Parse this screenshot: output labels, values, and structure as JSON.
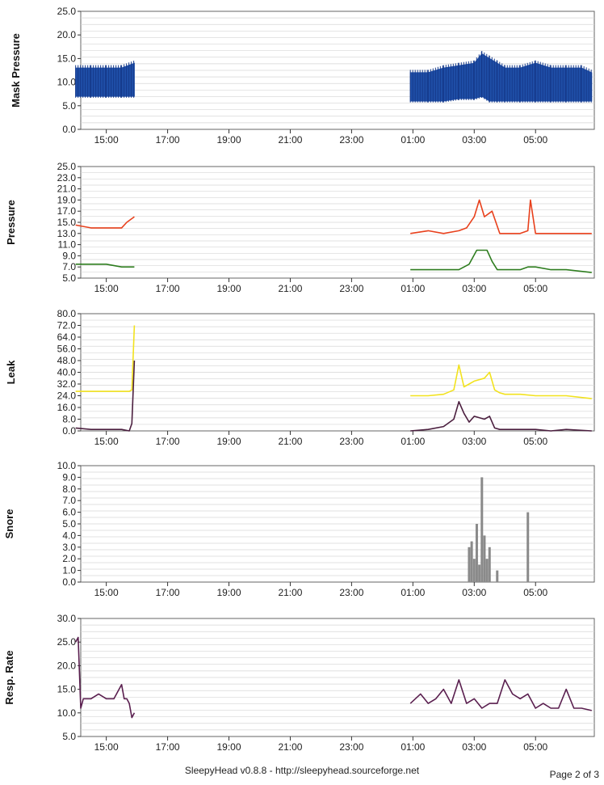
{
  "footer": {
    "text": "SleepyHead v0.8.8 - http://sleepyhead.sourceforge.net",
    "page": "Page 2 of 3"
  },
  "x_ticks": [
    "15:00",
    "17:00",
    "19:00",
    "21:00",
    "23:00",
    "01:00",
    "03:00",
    "05:00"
  ],
  "chart_data": [
    {
      "type": "line",
      "ylabel": "Mask Pressure",
      "ylim": [
        0,
        25
      ],
      "yticks": [
        "0.0",
        "5.0",
        "10.0",
        "15.0",
        "20.0",
        "25.0"
      ],
      "grid": true,
      "series": [
        {
          "color": "#1f4fa8",
          "style": "band",
          "x": [
            "14:00",
            "14:30",
            "15:00",
            "15:30",
            "15:55",
            "00:55",
            "01:30",
            "02:00",
            "02:30",
            "03:00",
            "03:15",
            "03:30",
            "03:45",
            "04:00",
            "04:30",
            "05:00",
            "05:30",
            "06:00",
            "06:30",
            "06:50"
          ],
          "low": [
            7,
            7,
            7,
            7,
            7,
            6,
            6,
            6,
            6.5,
            6.5,
            7,
            6,
            6,
            6,
            6,
            6,
            6,
            6,
            6,
            6
          ],
          "high": [
            13,
            13,
            13,
            13,
            14,
            12,
            12,
            13,
            13.5,
            14,
            16,
            15,
            14,
            13,
            13,
            14,
            13,
            13,
            13,
            12
          ]
        }
      ]
    },
    {
      "type": "line",
      "ylabel": "Pressure",
      "ylim": [
        5,
        25
      ],
      "yticks": [
        "5.0",
        "7.0",
        "9.0",
        "11.0",
        "13.0",
        "15.0",
        "17.0",
        "19.0",
        "21.0",
        "23.0",
        "25.0"
      ],
      "grid": true,
      "series": [
        {
          "color": "#e8401c",
          "x": [
            "14:00",
            "14:30",
            "15:00",
            "15:30",
            "15:40",
            "15:55",
            "00:55",
            "01:30",
            "02:00",
            "02:30",
            "02:45",
            "03:00",
            "03:10",
            "03:20",
            "03:35",
            "03:50",
            "04:00",
            "04:30",
            "04:45",
            "04:50",
            "05:00",
            "05:30",
            "06:00",
            "06:50"
          ],
          "values": [
            14.5,
            14,
            14,
            14,
            15,
            16,
            13,
            13.5,
            13,
            13.5,
            14,
            16,
            19,
            16,
            17,
            13,
            13,
            13,
            13.5,
            19,
            13,
            13,
            13,
            13
          ]
        },
        {
          "color": "#2e7d1f",
          "x": [
            "14:00",
            "14:30",
            "15:00",
            "15:30",
            "15:55",
            "00:55",
            "01:30",
            "02:00",
            "02:30",
            "02:50",
            "03:05",
            "03:15",
            "03:25",
            "03:35",
            "03:45",
            "04:00",
            "04:30",
            "04:45",
            "05:00",
            "05:30",
            "06:00",
            "06:50"
          ],
          "values": [
            7.5,
            7.5,
            7.5,
            7,
            7,
            6.5,
            6.5,
            6.5,
            6.5,
            7.5,
            10,
            10,
            10,
            8,
            6.5,
            6.5,
            6.5,
            7,
            7,
            6.5,
            6.5,
            6
          ]
        }
      ]
    },
    {
      "type": "line",
      "ylabel": "Leak",
      "ylim": [
        0,
        80
      ],
      "yticks": [
        "0.0",
        "8.0",
        "16.0",
        "24.0",
        "32.0",
        "40.0",
        "48.0",
        "56.0",
        "64.0",
        "72.0",
        "80.0"
      ],
      "grid": true,
      "series": [
        {
          "color": "#f2e21e",
          "x": [
            "14:00",
            "14:30",
            "15:00",
            "15:30",
            "15:45",
            "15:50",
            "15:55",
            "00:55",
            "01:30",
            "02:00",
            "02:20",
            "02:30",
            "02:40",
            "02:50",
            "03:00",
            "03:20",
            "03:30",
            "03:40",
            "03:50",
            "04:00",
            "04:30",
            "05:00",
            "05:30",
            "06:00",
            "06:50"
          ],
          "values": [
            27,
            27,
            27,
            27,
            27,
            28,
            72,
            24,
            24,
            25,
            28,
            45,
            30,
            32,
            34,
            36,
            40,
            28,
            26,
            25,
            25,
            24,
            24,
            24,
            22
          ]
        },
        {
          "color": "#4b1f3f",
          "x": [
            "14:00",
            "14:30",
            "15:00",
            "15:30",
            "15:45",
            "15:50",
            "15:55",
            "00:55",
            "01:30",
            "02:00",
            "02:20",
            "02:30",
            "02:40",
            "02:50",
            "03:00",
            "03:20",
            "03:30",
            "03:40",
            "03:50",
            "04:00",
            "04:30",
            "05:00",
            "05:30",
            "06:00",
            "06:50"
          ],
          "values": [
            2,
            1,
            1,
            1,
            0,
            5,
            48,
            0,
            1,
            3,
            8,
            20,
            12,
            6,
            10,
            8,
            10,
            2,
            1,
            1,
            1,
            1,
            0,
            1,
            0
          ]
        }
      ]
    },
    {
      "type": "bar",
      "ylabel": "Snore",
      "ylim": [
        0,
        10
      ],
      "yticks": [
        "0.0",
        "1.0",
        "2.0",
        "3.0",
        "4.0",
        "5.0",
        "6.0",
        "7.0",
        "8.0",
        "9.0",
        "10.0"
      ],
      "grid": true,
      "series": [
        {
          "color": "#8a8a8a",
          "x": [
            "02:50",
            "02:55",
            "03:00",
            "03:05",
            "03:10",
            "03:15",
            "03:20",
            "03:25",
            "03:30",
            "03:45",
            "04:45"
          ],
          "values": [
            3,
            3.5,
            2,
            5,
            1.5,
            9,
            4,
            2,
            3,
            1,
            6
          ]
        }
      ]
    },
    {
      "type": "line",
      "ylabel": "Resp. Rate",
      "ylim": [
        5,
        30
      ],
      "yticks": [
        "5.0",
        "10.0",
        "15.0",
        "20.0",
        "25.0",
        "30.0"
      ],
      "grid": true,
      "series": [
        {
          "color": "#5a1f4f",
          "x": [
            "14:00",
            "14:05",
            "14:10",
            "14:15",
            "14:30",
            "14:45",
            "15:00",
            "15:15",
            "15:30",
            "15:35",
            "15:40",
            "15:45",
            "15:50",
            "15:55",
            "00:55",
            "01:15",
            "01:30",
            "01:45",
            "02:00",
            "02:15",
            "02:30",
            "02:45",
            "03:00",
            "03:15",
            "03:30",
            "03:45",
            "04:00",
            "04:15",
            "04:30",
            "04:45",
            "05:00",
            "05:15",
            "05:30",
            "05:45",
            "06:00",
            "06:15",
            "06:30",
            "06:50"
          ],
          "values": [
            25,
            26,
            11,
            13,
            13,
            14,
            13,
            13,
            16,
            13,
            13,
            12,
            9,
            10,
            12,
            14,
            12,
            13,
            15,
            12,
            17,
            12,
            13,
            11,
            12,
            12,
            17,
            14,
            13,
            14,
            11,
            12,
            11,
            11,
            15,
            11,
            11,
            10.5
          ]
        }
      ]
    }
  ]
}
